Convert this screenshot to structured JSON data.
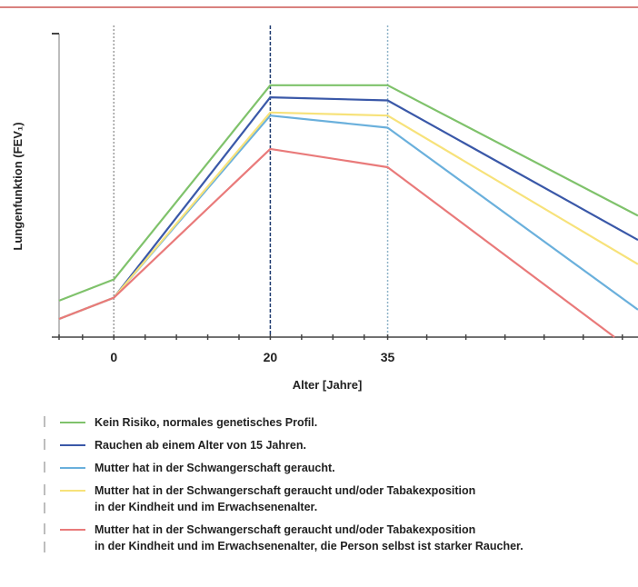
{
  "chart_data": {
    "type": "line",
    "ylabel": "Lungenfunktion (FEV₁)",
    "xlabel": "Alter [Jahre]",
    "x_ticks": [
      "0",
      "20",
      "35"
    ],
    "x_tick_values": [
      0,
      20,
      35
    ],
    "xlim": [
      -7,
      67
    ],
    "ylim": [
      0,
      1
    ],
    "y_ticks_labeled": false,
    "grid": false,
    "vertical_reference_lines": [
      {
        "x": 0,
        "color": "#9e9e9e",
        "style": "dotted"
      },
      {
        "x": 20,
        "color": "#1f3b70",
        "style": "dashed"
      },
      {
        "x": 35,
        "color": "#8fb3c8",
        "style": "dotted"
      }
    ],
    "legend_position": "bottom",
    "x": [
      -7,
      0,
      20,
      35,
      67
    ],
    "series": [
      {
        "name": "Kein Risiko, normales genetisches Profil.",
        "color": "#7fc26b",
        "x": [
          -7,
          0,
          20,
          35,
          67
        ],
        "values": [
          0.12,
          0.19,
          0.83,
          0.83,
          0.4
        ]
      },
      {
        "name": "Rauchen ab einem Alter von 15 Jahren.",
        "color": "#3a58a8",
        "x": [
          -7,
          0,
          20,
          35,
          67
        ],
        "values": [
          0.06,
          0.13,
          0.79,
          0.78,
          0.32
        ]
      },
      {
        "name": "Mutter hat in der Schwangerschaft geraucht.",
        "color": "#6ab0dc",
        "x": [
          -7,
          0,
          20,
          35,
          67
        ],
        "values": [
          0.06,
          0.13,
          0.73,
          0.69,
          0.09
        ]
      },
      {
        "name": "Mutter hat in der Schwangerschaft geraucht und/oder Tabakexposition\nin der Kindheit und im Erwachsenenalter.",
        "color": "#f7e27a",
        "x": [
          -7,
          0,
          20,
          35,
          67
        ],
        "values": [
          0.06,
          0.13,
          0.74,
          0.73,
          0.24
        ]
      },
      {
        "name": "Mutter hat in der Schwangerschaft geraucht und/oder Tabakexposition\nin der Kindheit und im Erwachsenenalter, die Person selbst ist starker Raucher.",
        "color": "#e97a7a",
        "x": [
          -7,
          0,
          20,
          35,
          64
        ],
        "values": [
          0.06,
          0.13,
          0.62,
          0.56,
          0.0
        ]
      }
    ]
  }
}
